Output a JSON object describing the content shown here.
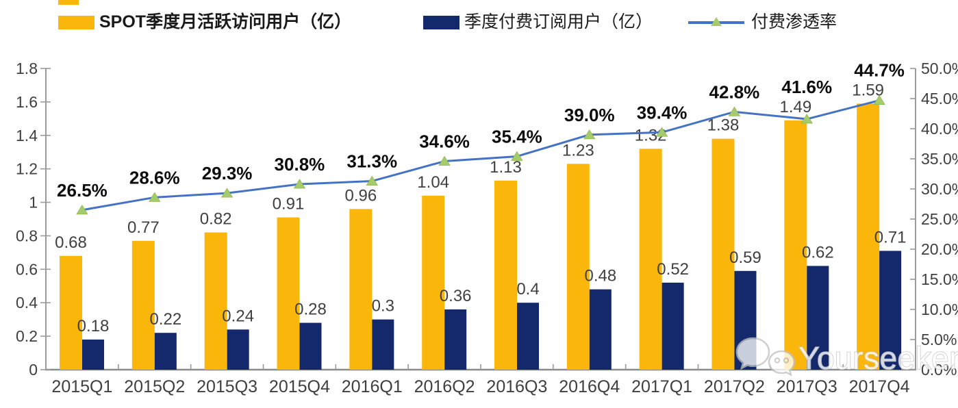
{
  "legend": {
    "items": [
      {
        "label": "SPOT季度月活跃访问用户（亿）"
      },
      {
        "label": "季度付费订阅用户（亿）"
      },
      {
        "label": "付费渗透率"
      }
    ]
  },
  "colors": {
    "mau_bar": "#FBB60C",
    "sub_bar": "#13296B",
    "penetration_line": "#4472C4",
    "penetration_marker": "#A5CB6D",
    "axis": "#9a9a9a",
    "axis_text": "#3f3f3f",
    "bar_label_text": "#404040",
    "pct_label_text": "#0d0d0d"
  },
  "chart_data": {
    "type": "bar",
    "subtype": "grouped bars with secondary-axis line",
    "categories": [
      "2015Q1",
      "2015Q2",
      "2015Q3",
      "2015Q4",
      "2016Q1",
      "2016Q2",
      "2016Q3",
      "2016Q4",
      "2017Q1",
      "2017Q2",
      "2017Q3",
      "2017Q4"
    ],
    "series": [
      {
        "name": "SPOT季度月活跃访问用户（亿）",
        "type": "bar",
        "axis": "left",
        "values": [
          0.68,
          0.77,
          0.82,
          0.91,
          0.96,
          1.04,
          1.13,
          1.23,
          1.32,
          1.38,
          1.49,
          1.59
        ],
        "labels": [
          "0.68",
          "0.77",
          "0.82",
          "0.91",
          "0.96",
          "1.04",
          "1.13",
          "1.23",
          "1.32",
          "1.38",
          "1.49",
          "1.59"
        ]
      },
      {
        "name": "季度付费订阅用户（亿）",
        "type": "bar",
        "axis": "left",
        "values": [
          0.18,
          0.22,
          0.24,
          0.28,
          0.3,
          0.36,
          0.4,
          0.48,
          0.52,
          0.59,
          0.62,
          0.71
        ],
        "labels": [
          "0.18",
          "0.22",
          "0.24",
          "0.28",
          "0.3",
          "0.36",
          "0.4",
          "0.48",
          "0.52",
          "0.59",
          "0.62",
          "0.71"
        ]
      },
      {
        "name": "付费渗透率",
        "type": "line",
        "axis": "right",
        "values": [
          26.5,
          28.6,
          29.3,
          30.8,
          31.3,
          34.6,
          35.4,
          39.0,
          39.4,
          42.8,
          41.6,
          44.7
        ],
        "labels": [
          "26.5%",
          "28.6%",
          "29.3%",
          "30.8%",
          "31.3%",
          "34.6%",
          "35.4%",
          "39.0%",
          "39.4%",
          "42.8%",
          "41.6%",
          "44.7%"
        ]
      }
    ],
    "left_axis": {
      "min": 0,
      "max": 1.8,
      "tick_labels": [
        "0",
        "0.2",
        "0.4",
        "0.6",
        "0.8",
        "1",
        "1.2",
        "1.4",
        "1.6",
        "1.8"
      ]
    },
    "right_axis": {
      "min": 0,
      "max": 50,
      "tick_labels": [
        "0.0%",
        "5.0%",
        "10.0%",
        "15.0%",
        "20.0%",
        "25.0%",
        "30.0%",
        "35.0%",
        "40.0%",
        "45.0%",
        "50.0%"
      ]
    },
    "grid": false,
    "legend_position": "top"
  },
  "watermark": {
    "text": "Yourseeker",
    "icon": "wechat-icon"
  }
}
